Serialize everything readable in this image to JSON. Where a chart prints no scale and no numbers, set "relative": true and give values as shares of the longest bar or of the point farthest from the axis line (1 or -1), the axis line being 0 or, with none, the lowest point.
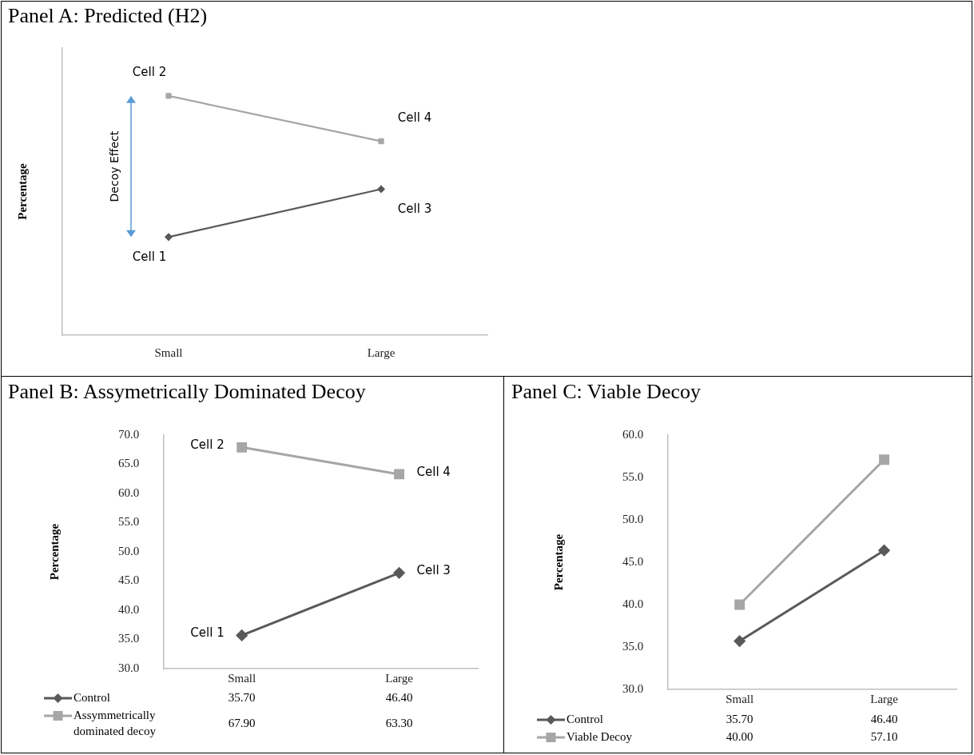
{
  "chart_data": [
    {
      "type": "line",
      "title": "Panel A: Predicted (H2)",
      "ylabel": "Percentage",
      "categories": [
        "Small",
        "Large"
      ],
      "relative": true,
      "grid": false,
      "series": [
        {
          "color": "#595959",
          "marker": "diamond",
          "values": [
            0.41,
            0.61
          ]
        },
        {
          "color": "#a6a6a6",
          "marker": "square",
          "values": [
            1,
            0.81
          ]
        }
      ],
      "annotations": [
        {
          "text": "Cell 1",
          "x": "Small",
          "y": 0.41
        },
        {
          "text": "Cell 2",
          "x": "Small",
          "y": 1
        },
        {
          "text": "Cell 3",
          "x": "Large",
          "y": 0.61
        },
        {
          "text": "Cell 4",
          "x": "Large",
          "y": 0.81
        },
        "Decoy Effect"
      ]
    },
    {
      "type": "line",
      "title": "Panel B: Assymetrically Dominated Decoy",
      "ylabel": "Percentage",
      "categories": [
        "Small",
        "Large"
      ],
      "ylim": [
        30,
        70
      ],
      "yticks": [
        {
          "value": 30,
          "label": "30.0"
        },
        {
          "value": 35,
          "label": "35.0"
        },
        {
          "value": 40,
          "label": "40.0"
        },
        {
          "value": 45,
          "label": "45.0"
        },
        {
          "value": 50,
          "label": "50.0"
        },
        {
          "value": 55,
          "label": "55.0"
        },
        {
          "value": 60,
          "label": "60.0"
        },
        {
          "value": 65,
          "label": "65.0"
        },
        {
          "value": 70,
          "label": "70.0"
        }
      ],
      "grid": false,
      "legend": "bottom",
      "series": [
        {
          "name": "Control",
          "color": "#595959",
          "marker": "diamond",
          "values": [
            35.7,
            46.4
          ],
          "value_labels": [
            "35.70",
            "46.40"
          ]
        },
        {
          "name": "Assymmetrically dominated decoy",
          "color": "#a6a6a6",
          "marker": "square",
          "values": [
            67.9,
            63.3
          ],
          "value_labels": [
            "67.90",
            "63.30"
          ]
        }
      ],
      "annotations": [
        {
          "text": "Cell 1",
          "x": "Small",
          "y": 35.7
        },
        {
          "text": "Cell 2",
          "x": "Small",
          "y": 67.9
        },
        {
          "text": "Cell 3",
          "x": "Large",
          "y": 46.4
        },
        {
          "text": "Cell 4",
          "x": "Large",
          "y": 63.3
        }
      ]
    },
    {
      "type": "line",
      "title": "Panel C: Viable Decoy",
      "ylabel": "Percentage",
      "categories": [
        "Small",
        "Large"
      ],
      "ylim": [
        30,
        60
      ],
      "yticks": [
        {
          "value": 30,
          "label": "30.0"
        },
        {
          "value": 35,
          "label": "35.0"
        },
        {
          "value": 40,
          "label": "40.0"
        },
        {
          "value": 45,
          "label": "45.0"
        },
        {
          "value": 50,
          "label": "50.0"
        },
        {
          "value": 55,
          "label": "55.0"
        },
        {
          "value": 60,
          "label": "60.0"
        }
      ],
      "grid": false,
      "legend": "bottom",
      "series": [
        {
          "name": "Control",
          "color": "#595959",
          "marker": "diamond",
          "values": [
            35.7,
            46.4
          ],
          "value_labels": [
            "35.70",
            "46.40"
          ]
        },
        {
          "name": "Viable Decoy",
          "color": "#a6a6a6",
          "marker": "square",
          "values": [
            40.0,
            57.1
          ],
          "value_labels": [
            "40.00",
            "57.10"
          ]
        }
      ]
    }
  ]
}
